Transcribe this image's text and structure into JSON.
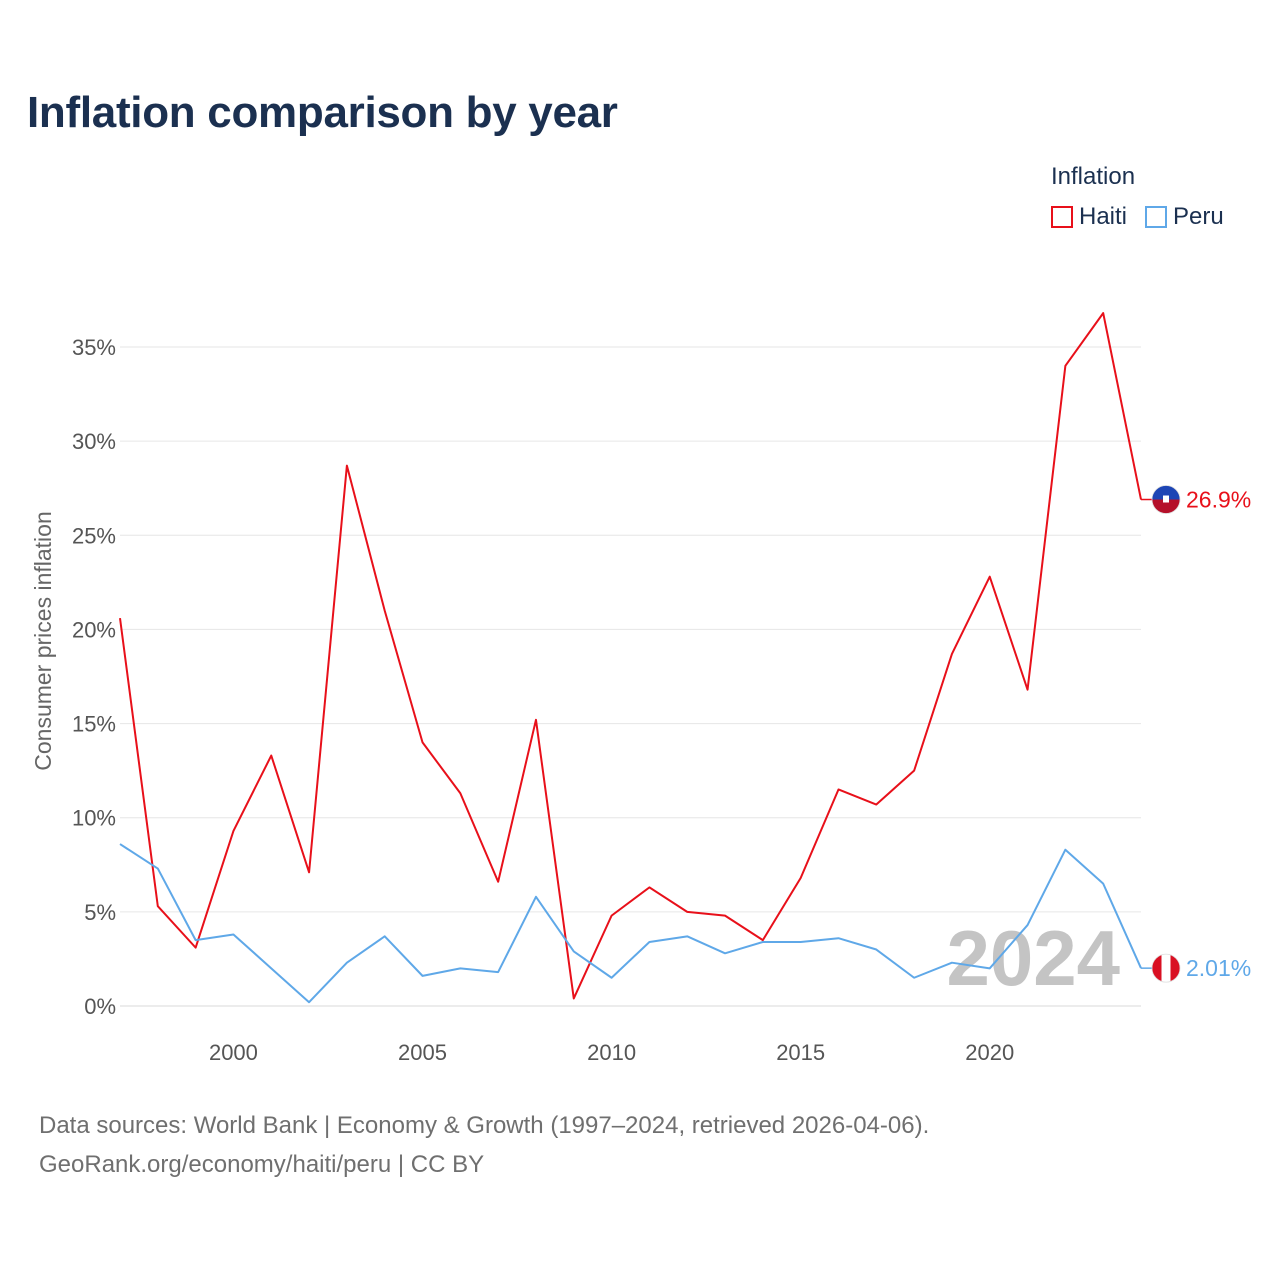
{
  "title": "Inflation comparison by year",
  "legend": {
    "title": "Inflation",
    "items": [
      {
        "label": "Haiti",
        "color": "#e8101a"
      },
      {
        "label": "Peru",
        "color": "#5fa8e8"
      }
    ]
  },
  "footer": {
    "line1": "Data sources: World Bank | Economy & Growth (1997–2024, retrieved 2026-04-06).",
    "line2": "GeoRank.org/economy/haiti/peru | CC BY"
  },
  "chart_data": {
    "type": "line",
    "title": "Inflation comparison by year",
    "xlabel": "",
    "ylabel": "Consumer prices inflation",
    "x": [
      1997,
      1998,
      1999,
      2000,
      2001,
      2002,
      2003,
      2004,
      2005,
      2006,
      2007,
      2008,
      2009,
      2010,
      2011,
      2012,
      2013,
      2014,
      2015,
      2016,
      2017,
      2018,
      2019,
      2020,
      2021,
      2022,
      2023,
      2024
    ],
    "series": [
      {
        "name": "Haiti",
        "color": "#e8101a",
        "values": [
          20.6,
          5.3,
          3.1,
          9.3,
          13.3,
          7.1,
          28.7,
          21.0,
          14.0,
          11.3,
          6.6,
          15.2,
          0.4,
          4.8,
          6.3,
          5.0,
          4.8,
          3.5,
          6.8,
          11.5,
          10.7,
          12.5,
          18.7,
          22.8,
          16.8,
          34.0,
          36.8,
          26.9
        ],
        "end_label": "26.9%",
        "flag": "haiti-flag-icon"
      },
      {
        "name": "Peru",
        "color": "#5fa8e8",
        "values": [
          8.6,
          7.3,
          3.5,
          3.8,
          2.0,
          0.2,
          2.3,
          3.7,
          1.6,
          2.0,
          1.8,
          5.8,
          2.9,
          1.5,
          3.4,
          3.7,
          2.8,
          3.4,
          3.4,
          3.6,
          3.0,
          1.5,
          2.3,
          2.0,
          4.3,
          8.3,
          6.5,
          2.01
        ],
        "end_label": "2.01%",
        "flag": "peru-flag-icon"
      }
    ],
    "ylim": [
      0,
      37
    ],
    "yticks": [
      0,
      5,
      10,
      15,
      20,
      25,
      30,
      35
    ],
    "ytick_labels": [
      "0%",
      "5%",
      "10%",
      "15%",
      "20%",
      "25%",
      "30%",
      "35%"
    ],
    "xlim": [
      1997,
      2024
    ],
    "xticks": [
      2000,
      2005,
      2010,
      2015,
      2020
    ],
    "xtick_labels": [
      "2000",
      "2005",
      "2010",
      "2015",
      "2020"
    ],
    "watermark": "2024",
    "grid": true,
    "legend_position": "top-right"
  }
}
